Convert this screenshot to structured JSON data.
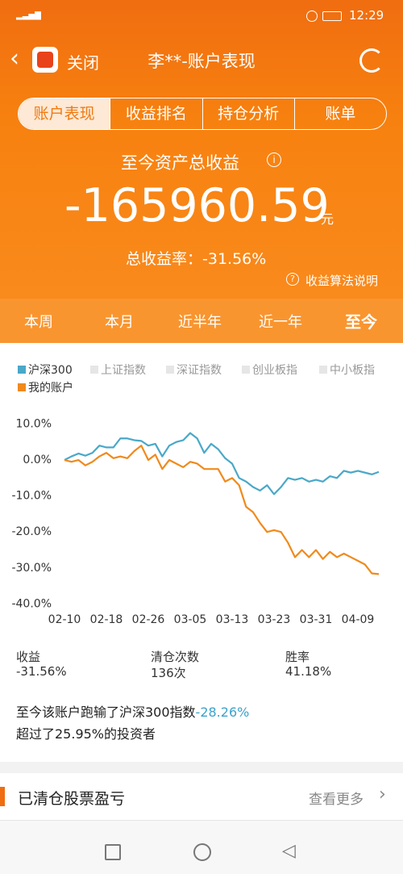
{
  "status_bar": {
    "time": "12:29"
  },
  "header": {
    "close": "关闭",
    "title": "李**-账户表现"
  },
  "tabs": [
    "账户表现",
    "收益排名",
    "持仓分析",
    "账单"
  ],
  "summary": {
    "label": "至今资产总收益",
    "amount": "-165960.59",
    "unit": "元",
    "rate": "总收益率：-31.56%",
    "help": "收益算法说明"
  },
  "periods": [
    "本周",
    "本月",
    "近半年",
    "近一年",
    "至今"
  ],
  "chart_data": {
    "type": "line",
    "categories": [
      "02-10",
      null,
      null,
      null,
      null,
      null,
      "02-18",
      null,
      null,
      null,
      null,
      null,
      "02-26",
      null,
      null,
      null,
      null,
      null,
      "03-05",
      null,
      null,
      null,
      null,
      null,
      "03-13",
      null,
      null,
      null,
      null,
      null,
      "03-23",
      null,
      null,
      null,
      null,
      null,
      "03-31",
      null,
      null,
      null,
      null,
      null,
      "04-09",
      null,
      null,
      null
    ],
    "series": [
      {
        "name": "沪深300",
        "color": "#4aa8c8",
        "values": [
          0,
          1,
          1.8,
          1.2,
          2,
          4,
          3.5,
          3.5,
          6,
          6,
          5.5,
          5.3,
          4,
          4.5,
          1,
          4,
          5,
          5.5,
          7.5,
          6,
          2,
          4.5,
          3,
          0.5,
          -1,
          -5,
          -6,
          -7.5,
          -8.5,
          -7,
          -9.5,
          -7.5,
          -5,
          -5.5,
          -5,
          -6,
          -5.5,
          -6,
          -4.5,
          -5,
          -3,
          -3.5,
          -3,
          -3.5,
          -4,
          -3.3
        ]
      },
      {
        "name": "我的账户",
        "color": "#f08a1c",
        "values": [
          0,
          -0.5,
          0,
          -1.5,
          -0.5,
          1,
          2,
          0.5,
          1,
          0.5,
          2.5,
          4,
          0,
          1.5,
          -2.5,
          0,
          -1,
          -2,
          -0.5,
          -1,
          -2.5,
          -2.5,
          -2.5,
          -6,
          -5,
          -7,
          -13,
          -14.5,
          -17.5,
          -20,
          -19.5,
          -20,
          -23,
          -27,
          -25,
          -27,
          -25,
          -27.5,
          -25.5,
          -27,
          -26,
          -27,
          -28,
          -29,
          -31.5,
          -31.7
        ]
      }
    ],
    "inactive_series": [
      "上证指数",
      "深证指数",
      "创业板指",
      "中小板指"
    ],
    "ylim": [
      -40,
      12
    ],
    "yticks": [
      {
        "value": 10,
        "label": "10.0%"
      },
      {
        "value": 0,
        "label": "0.0%"
      },
      {
        "value": -10,
        "label": "-10.0%"
      },
      {
        "value": -20,
        "label": "-20.0%"
      },
      {
        "value": -30,
        "label": "-30.0%"
      },
      {
        "value": -40,
        "label": "-40.0%"
      }
    ],
    "grid": false
  },
  "stats": [
    {
      "label": "收益",
      "value": "-31.56%"
    },
    {
      "label": "清仓次数",
      "value": "136次"
    },
    {
      "label": "胜率",
      "value": "41.18%"
    }
  ],
  "note": {
    "text1": "至今该账户跑输了沪深300指数",
    "diff": "-28.26%",
    "text2": "超过了25.95%的投资者"
  },
  "section": {
    "title": "已清仓股票盈亏",
    "more": "查看更多"
  }
}
